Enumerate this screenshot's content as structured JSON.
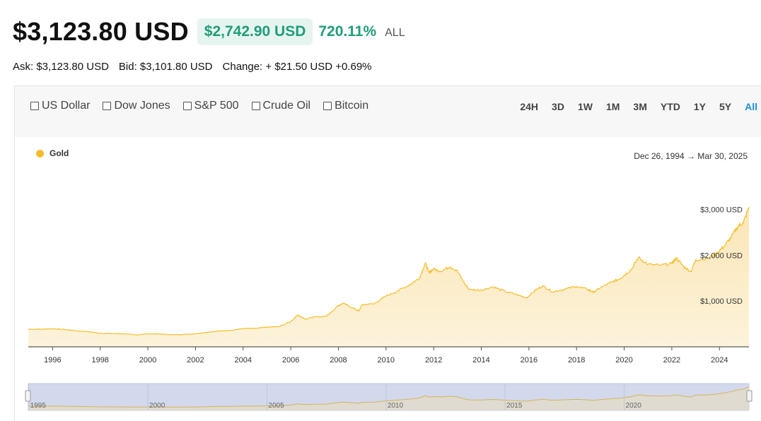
{
  "header": {
    "price": "$3,123.80 USD",
    "change_amount": "$2,742.90 USD",
    "change_percent": "720.11%",
    "range_label": "ALL"
  },
  "quotes": {
    "ask": "Ask: $3,123.80 USD",
    "bid": "Bid: $3,101.80 USD",
    "change": "Change: + $21.50 USD +0.69%"
  },
  "compare": [
    "US Dollar",
    "Dow Jones",
    "S&P 500",
    "Crude Oil",
    "Bitcoin"
  ],
  "ranges": [
    "24H",
    "3D",
    "1W",
    "1M",
    "3M",
    "YTD",
    "1Y",
    "5Y",
    "All"
  ],
  "active_range": "All",
  "legend": {
    "label": "Gold"
  },
  "date_range": {
    "start": "Dec 26, 1994",
    "arrow": "→",
    "end": "Mar 30, 2025"
  },
  "colors": {
    "gold": "#f5bd2c",
    "green": "#1f9d7a",
    "active": "#1a8fd0"
  },
  "chart_data": {
    "type": "area",
    "series": [
      {
        "name": "Gold",
        "x": [
          1994.98,
          1995.5,
          1996.0,
          1996.5,
          1997.0,
          1997.5,
          1998.0,
          1998.5,
          1999.0,
          1999.5,
          2000.0,
          2000.5,
          2001.0,
          2001.5,
          2002.0,
          2002.5,
          2003.0,
          2003.5,
          2004.0,
          2004.5,
          2005.0,
          2005.5,
          2006.0,
          2006.3,
          2006.6,
          2007.0,
          2007.5,
          2008.0,
          2008.2,
          2008.6,
          2008.85,
          2009.0,
          2009.5,
          2010.0,
          2010.5,
          2011.0,
          2011.4,
          2011.65,
          2011.8,
          2012.0,
          2012.3,
          2012.7,
          2013.0,
          2013.3,
          2013.5,
          2014.0,
          2014.5,
          2015.0,
          2015.5,
          2015.9,
          2016.3,
          2016.6,
          2017.0,
          2017.5,
          2018.0,
          2018.5,
          2018.7,
          2019.0,
          2019.5,
          2019.8,
          2020.0,
          2020.3,
          2020.6,
          2021.0,
          2021.5,
          2022.0,
          2022.2,
          2022.5,
          2022.8,
          2023.0,
          2023.5,
          2023.9,
          2024.2,
          2024.5,
          2024.8,
          2025.0,
          2025.24
        ],
        "y": [
          385,
          385,
          395,
          380,
          350,
          330,
          295,
          290,
          285,
          260,
          285,
          280,
          265,
          270,
          285,
          320,
          345,
          360,
          400,
          400,
          430,
          440,
          550,
          700,
          600,
          660,
          670,
          900,
          950,
          850,
          780,
          920,
          940,
          1110,
          1220,
          1360,
          1500,
          1830,
          1620,
          1700,
          1650,
          1750,
          1650,
          1380,
          1250,
          1240,
          1310,
          1210,
          1140,
          1070,
          1250,
          1330,
          1200,
          1260,
          1320,
          1250,
          1190,
          1290,
          1420,
          1480,
          1560,
          1690,
          1950,
          1800,
          1780,
          1820,
          1940,
          1750,
          1640,
          1900,
          1930,
          2050,
          2200,
          2400,
          2650,
          2700,
          3050
        ]
      }
    ],
    "x_ticks": [
      "1996",
      "1998",
      "2000",
      "2002",
      "2004",
      "2006",
      "2008",
      "2010",
      "2012",
      "2014",
      "2016",
      "2018",
      "2020",
      "2022",
      "2024"
    ],
    "y_tick_labels": [
      "$1,000 USD",
      "$2,000 USD",
      "$3,000 USD"
    ],
    "y_ticks": [
      1000,
      2000,
      3000
    ],
    "navigator_labels": [
      "1995",
      "2000",
      "2005",
      "2010",
      "2015",
      "2020"
    ],
    "xlim": [
      1994.98,
      2025.24
    ],
    "ylim": [
      0,
      3100
    ],
    "grid": false,
    "legend_position": "top-left"
  }
}
